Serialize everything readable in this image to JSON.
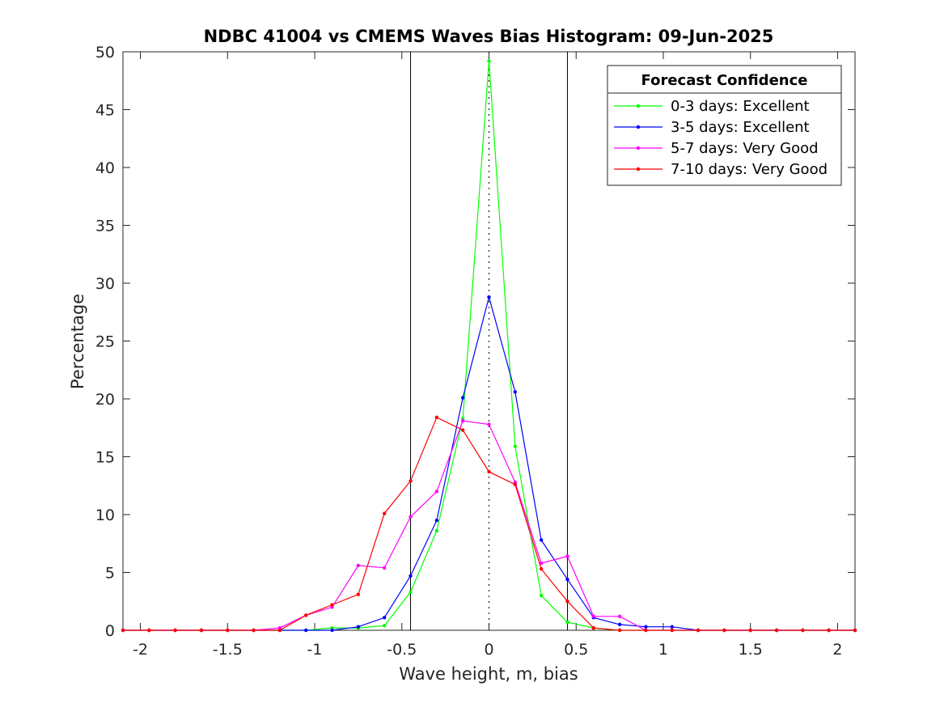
{
  "chart_data": {
    "type": "line",
    "title": "NDBC 41004 vs CMEMS Waves Bias Histogram: 09-Jun-2025",
    "xlabel": "Wave height, m, bias",
    "ylabel": "Percentage",
    "xlim": [
      -2.1,
      2.1
    ],
    "ylim": [
      0,
      50
    ],
    "xticks": [
      -2,
      -1.5,
      -1,
      -0.5,
      0,
      0.5,
      1,
      1.5,
      2
    ],
    "xtick_labels": [
      "-2",
      "-1.5",
      "-1",
      "-0.5",
      "0",
      "0.5",
      "1",
      "1.5",
      "2"
    ],
    "yticks": [
      0,
      5,
      10,
      15,
      20,
      25,
      30,
      35,
      40,
      45,
      50
    ],
    "ytick_labels": [
      "0",
      "5",
      "10",
      "15",
      "20",
      "25",
      "30",
      "35",
      "40",
      "45",
      "50"
    ],
    "grid": false,
    "reference_lines": [
      {
        "x": -0.45,
        "style": "solid"
      },
      {
        "x": 0.45,
        "style": "solid"
      },
      {
        "x": 0,
        "style": "dotted"
      }
    ],
    "legend": {
      "title": "Forecast Confidence",
      "position": "top-right"
    },
    "x": [
      -2.1,
      -1.95,
      -1.8,
      -1.65,
      -1.5,
      -1.35,
      -1.2,
      -1.05,
      -0.9,
      -0.75,
      -0.6,
      -0.45,
      -0.3,
      -0.15,
      0,
      0.15,
      0.3,
      0.45,
      0.6,
      0.75,
      0.9,
      1.05,
      1.2,
      1.35,
      1.5,
      1.65,
      1.8,
      1.95,
      2.1
    ],
    "series": [
      {
        "name": "0-3 days: Excellent",
        "color": "#00ff00",
        "values": [
          0,
          0,
          0,
          0,
          0,
          0,
          0,
          0,
          0.2,
          0.2,
          0.4,
          3.3,
          8.6,
          18.3,
          49.2,
          15.9,
          3.0,
          0.7,
          0.2,
          0,
          0,
          0,
          0,
          0,
          0,
          0,
          0,
          0,
          0
        ]
      },
      {
        "name": "3-5 days: Excellent",
        "color": "#0000ff",
        "values": [
          0,
          0,
          0,
          0,
          0,
          0,
          0,
          0,
          0,
          0.3,
          1.1,
          4.7,
          9.5,
          20.1,
          28.8,
          20.6,
          7.8,
          4.4,
          1.1,
          0.5,
          0.3,
          0.3,
          0,
          0,
          0,
          0,
          0,
          0,
          0
        ]
      },
      {
        "name": "5-7 days: Very Good",
        "color": "#ff00ff",
        "values": [
          0,
          0,
          0,
          0,
          0,
          0,
          0.2,
          1.3,
          2.0,
          5.6,
          5.4,
          9.8,
          12.0,
          18.1,
          17.8,
          12.8,
          5.8,
          6.4,
          1.2,
          1.2,
          0,
          0,
          0,
          0,
          0,
          0,
          0,
          0,
          0
        ]
      },
      {
        "name": "7-10 days: Very Good",
        "color": "#ff0000",
        "values": [
          0,
          0,
          0,
          0,
          0,
          0,
          0,
          1.3,
          2.2,
          3.1,
          10.1,
          12.9,
          18.4,
          17.3,
          13.7,
          12.6,
          5.3,
          2.5,
          0.2,
          0,
          0,
          0,
          0,
          0,
          0,
          0,
          0,
          0,
          0
        ]
      }
    ]
  }
}
